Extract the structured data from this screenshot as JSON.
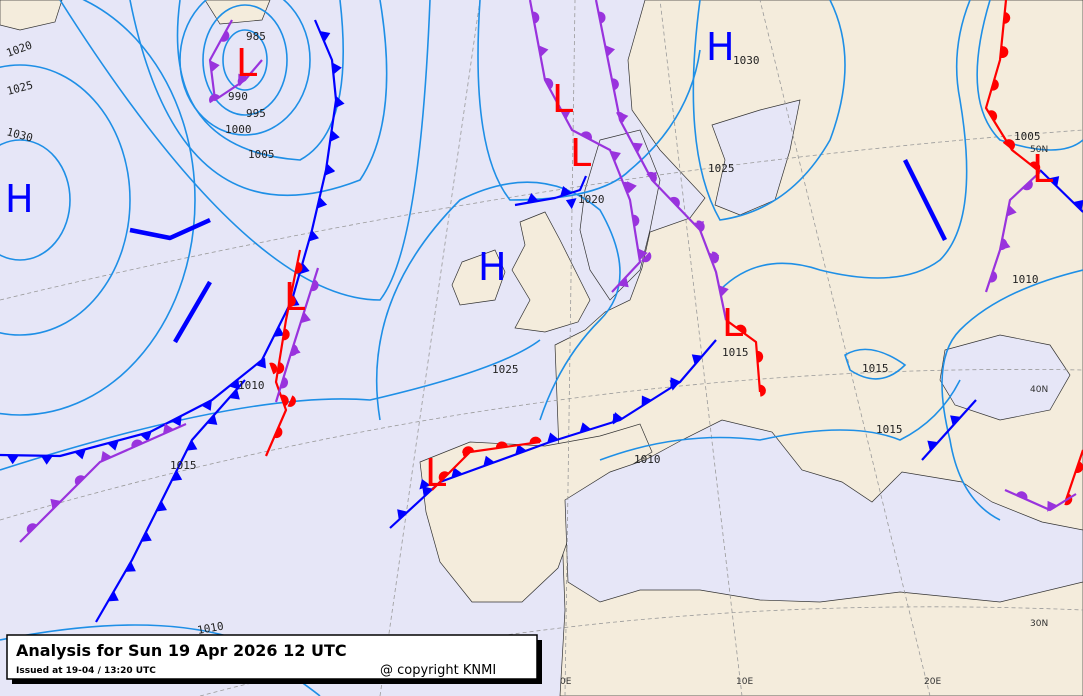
{
  "title": "Analysis for Sun 19 Apr 2026 12 UTC",
  "issued": "Issued at 19-04 / 13:20 UTC",
  "copyright": "@ copyright KNMI",
  "pressure_centers": [
    {
      "label": "H",
      "color": "#0000ff"
    },
    {
      "label": "L",
      "color": "#ff0000"
    },
    {
      "label": "H",
      "color": "#0000ff"
    },
    {
      "label": "L",
      "color": "#ff0000"
    },
    {
      "label": "L",
      "color": "#ff0000"
    },
    {
      "label": "H",
      "color": "#0000ff"
    },
    {
      "label": "L",
      "color": "#ff0000"
    },
    {
      "label": "L",
      "color": "#ff0000"
    },
    {
      "label": "L",
      "color": "#ff0000"
    },
    {
      "label": "L",
      "color": "#ff0000"
    }
  ],
  "isobar_labels": [
    985,
    990,
    995,
    1000,
    1005,
    1020,
    1025,
    1030,
    1020,
    1030,
    1025,
    1025,
    1010,
    1015,
    1010,
    1015,
    1015,
    1015,
    1010,
    1005,
    1010
  ],
  "grid_labels": [
    "50N",
    "40N",
    "30N",
    "0E",
    "10E",
    "20E"
  ]
}
